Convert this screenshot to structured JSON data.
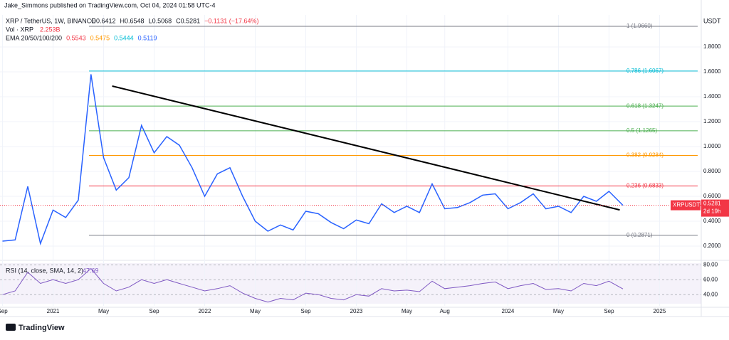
{
  "header": {
    "publisher": "Jake_Simmons published on TradingView.com, Oct 04, 2024 01:58 UTC-4",
    "symbol": "XRP / TetherUS, 1W, BINANCE",
    "ohlc": [
      "O0.6412",
      "H0.6548",
      "L0.5068",
      "C0.5281",
      "−0.1131 (−17.64%)"
    ],
    "vol_label": "Vol · XRP",
    "vol_value": "2.253B",
    "ema_label": "EMA 20/50/100/200",
    "ema_values": [
      "0.5543",
      "0.5475",
      "0.5444",
      "0.5119"
    ],
    "currency": "USDT",
    "ticker_tag": "XRPUSDT",
    "countdown": "2d 19h",
    "brand": "TradingView"
  },
  "chart_data": {
    "type": "line",
    "x": [
      8,
      9,
      10,
      11,
      12,
      13,
      14,
      15,
      16,
      17,
      18,
      19,
      20,
      21,
      22,
      23,
      24,
      25,
      26,
      27,
      28,
      29,
      30,
      31,
      32,
      33,
      34,
      35,
      36,
      37,
      38,
      39,
      40,
      41,
      42,
      43,
      44,
      45,
      46,
      47,
      48,
      49,
      50,
      51,
      52,
      53,
      54,
      55,
      56,
      57.1
    ],
    "series": [
      {
        "name": "XRPUSDT",
        "color": "#2962ff",
        "values": [
          0.24,
          0.25,
          0.68,
          0.22,
          0.49,
          0.43,
          0.57,
          1.58,
          0.91,
          0.65,
          0.75,
          1.17,
          0.95,
          1.08,
          1.01,
          0.83,
          0.6,
          0.78,
          0.83,
          0.6,
          0.4,
          0.32,
          0.37,
          0.33,
          0.48,
          0.46,
          0.39,
          0.34,
          0.41,
          0.38,
          0.54,
          0.47,
          0.52,
          0.47,
          0.7,
          0.5,
          0.51,
          0.55,
          0.61,
          0.62,
          0.5,
          0.55,
          0.62,
          0.5,
          0.52,
          0.47,
          0.6,
          0.56,
          0.64,
          0.5281
        ]
      }
    ],
    "trendline": {
      "x": [
        16.68,
        56.85
      ],
      "values": [
        1.486,
        0.491
      ],
      "color": "#000000"
    },
    "xlim": [
      7.8,
      63.3
    ],
    "xticks": [
      {
        "value": 8,
        "label": "Sep"
      },
      {
        "value": 12,
        "label": "2021"
      },
      {
        "value": 16,
        "label": "May"
      },
      {
        "value": 20,
        "label": "Sep"
      },
      {
        "value": 24,
        "label": "2022"
      },
      {
        "value": 28,
        "label": "May"
      },
      {
        "value": 32,
        "label": "Sep"
      },
      {
        "value": 36,
        "label": "2023"
      },
      {
        "value": 40,
        "label": "May"
      },
      {
        "value": 43,
        "label": "Aug"
      },
      {
        "value": 48,
        "label": "2024"
      },
      {
        "value": 52,
        "label": "May"
      },
      {
        "value": 56,
        "label": "Sep"
      },
      {
        "value": 60,
        "label": "2025"
      }
    ],
    "ylim": [
      0.1,
      2.0
    ],
    "yticks": [
      {
        "value": 0.2,
        "label": "0.2000"
      },
      {
        "value": 0.4,
        "label": "0.4000"
      },
      {
        "value": 0.6,
        "label": "0.6000"
      },
      {
        "value": 0.8,
        "label": "0.8000"
      },
      {
        "value": 1.0,
        "label": "1.0000"
      },
      {
        "value": 1.2,
        "label": "1.2000"
      },
      {
        "value": 1.4,
        "label": "1.4000"
      },
      {
        "value": 1.6,
        "label": "1.6000"
      },
      {
        "value": 1.8,
        "label": "1.8000"
      }
    ],
    "grid": true,
    "fib_levels": [
      {
        "value": 1.966,
        "label": "1 (1.9660)",
        "color": "#787b86"
      },
      {
        "value": 1.6067,
        "label": "0.786 (1.6067)",
        "color": "#00bcd4"
      },
      {
        "value": 1.3247,
        "label": "0.618 (1.3247)",
        "color": "#4caf50"
      },
      {
        "value": 1.1265,
        "label": "0.5 (1.1265)",
        "color": "#4caf50"
      },
      {
        "value": 0.9284,
        "label": "0.382 (0.9284)",
        "color": "#ff9800"
      },
      {
        "value": 0.6833,
        "label": "0.236 (0.6833)",
        "color": "#f23645"
      },
      {
        "value": 0.2871,
        "label": "0 (0.2871)",
        "color": "#787b86"
      }
    ],
    "rsi": {
      "label": "RSI (14, close, SMA, 14, 2)",
      "value_label": "47.69",
      "color": "#7e57c2",
      "values": [
        40,
        45,
        70,
        55,
        60,
        55,
        60,
        75,
        55,
        45,
        50,
        60,
        55,
        60,
        55,
        50,
        45,
        48,
        52,
        42,
        35,
        30,
        35,
        33,
        42,
        40,
        35,
        33,
        40,
        38,
        48,
        45,
        46,
        44,
        58,
        48,
        50,
        52,
        55,
        57,
        48,
        52,
        55,
        47,
        48,
        45,
        55,
        52,
        58,
        47.69
      ],
      "ylim": [
        25,
        84
      ],
      "yticks": [
        {
          "value": 40,
          "label": "40.00"
        },
        {
          "value": 60,
          "label": "60.00"
        },
        {
          "value": 80,
          "label": "80.00"
        }
      ]
    }
  }
}
